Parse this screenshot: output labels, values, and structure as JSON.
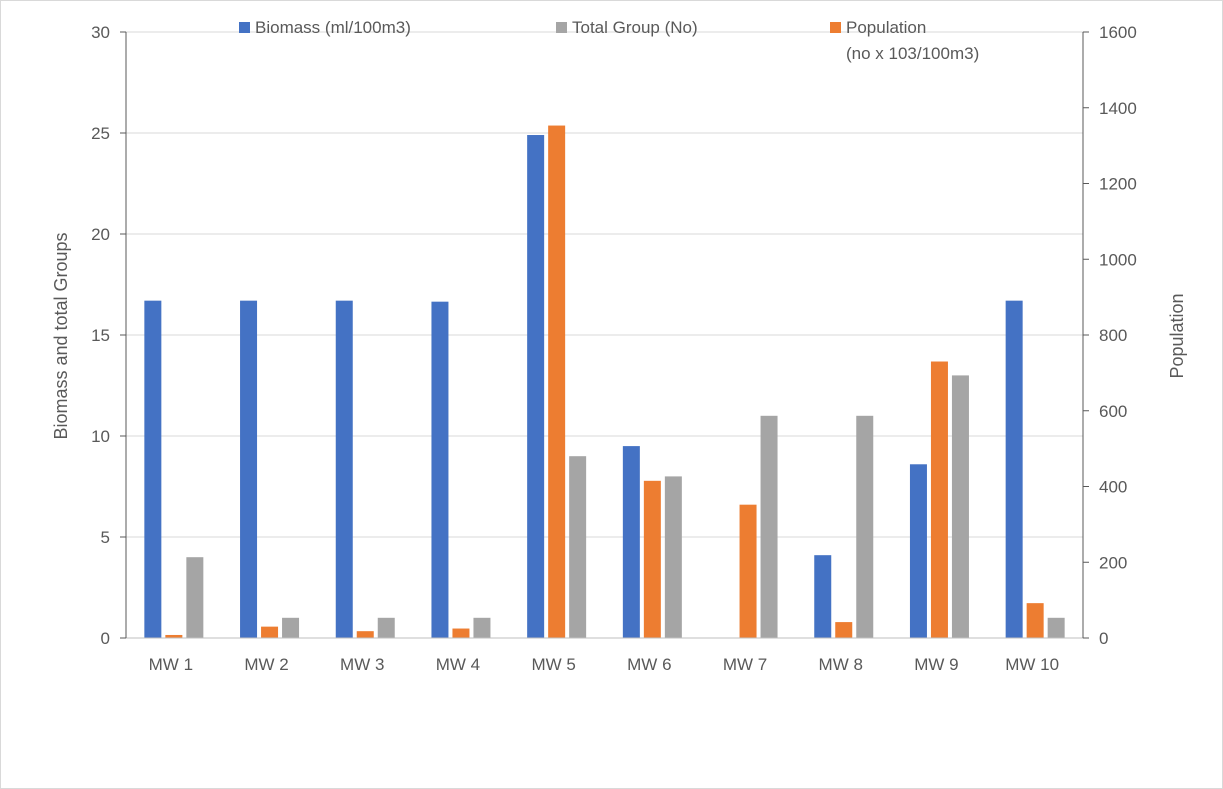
{
  "chart_data": {
    "type": "bar",
    "categories": [
      "MW 1",
      "MW 2",
      "MW 3",
      "MW 4",
      "MW 5",
      "MW 6",
      "MW 7",
      "MW 8",
      "MW 9",
      "MW 10"
    ],
    "series": [
      {
        "name": "Biomass (ml/100m3)",
        "axis": "left",
        "color": "#4472c4",
        "values": [
          16.7,
          16.7,
          16.7,
          16.65,
          24.9,
          9.5,
          0,
          4.1,
          8.6,
          16.7
        ]
      },
      {
        "name": "Population (no x 103/100m3)",
        "name_line1": "Population",
        "name_line2": "(no x 103/100m3)",
        "axis": "right",
        "color": "#ed7d31",
        "values": [
          8,
          30,
          18,
          25,
          1353,
          415,
          352,
          42,
          730,
          92
        ]
      },
      {
        "name": "Total Group (No)",
        "axis": "left",
        "color": "#a5a5a5",
        "values": [
          4,
          1,
          1,
          1,
          9,
          8,
          11,
          11,
          13,
          1
        ]
      }
    ],
    "ylabel": "Biomass and total Groups",
    "y2label": "Population",
    "ylim": [
      0,
      30
    ],
    "y2lim": [
      0,
      1600
    ],
    "yticks": [
      "0",
      "5",
      "10",
      "15",
      "20",
      "25",
      "30"
    ],
    "y2ticks": [
      "0",
      "200",
      "400",
      "600",
      "800",
      "1000",
      "1200",
      "1400",
      "1600"
    ],
    "grid": true,
    "legend": "top"
  }
}
